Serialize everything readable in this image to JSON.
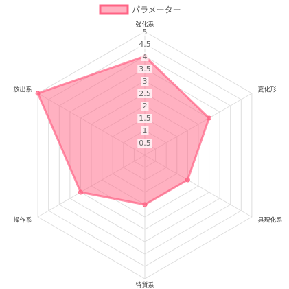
{
  "chart_data": {
    "type": "radar",
    "categories": [
      "強化系",
      "変化形",
      "具現化系",
      "特質系",
      "操作系",
      "放出系"
    ],
    "series": [
      {
        "name": "パラメーター",
        "color": "#ff6384",
        "values": [
          4,
          3,
          2,
          2,
          3,
          5
        ]
      }
    ],
    "rlim": [
      0,
      5
    ],
    "rticks": [
      0.5,
      1,
      1.5,
      2,
      2.5,
      3,
      3.5,
      4,
      4.5,
      5
    ],
    "legend": "top",
    "grid": true
  }
}
